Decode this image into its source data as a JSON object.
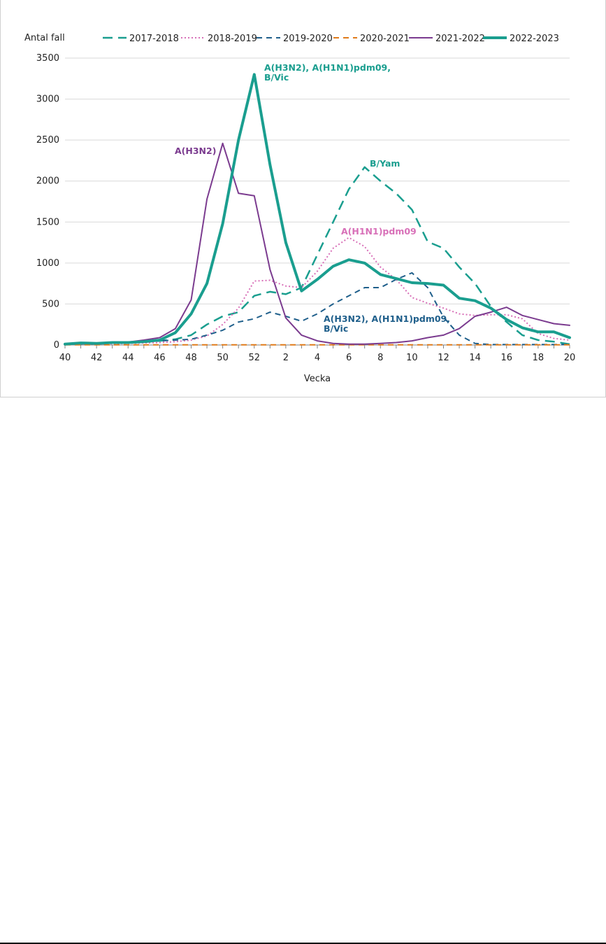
{
  "chart_data": {
    "type": "line",
    "ylabel": "Antal fall",
    "xlabel": "Vecka",
    "ylim": [
      0,
      3500
    ],
    "yticks": [
      0,
      500,
      1000,
      1500,
      2000,
      2500,
      3000,
      3500
    ],
    "x": [
      40,
      41,
      42,
      43,
      44,
      45,
      46,
      47,
      48,
      49,
      50,
      51,
      52,
      1,
      2,
      3,
      4,
      5,
      6,
      7,
      8,
      9,
      10,
      11,
      12,
      13,
      14,
      15,
      16,
      17,
      18,
      19,
      20
    ],
    "xtick_labels": [
      "40",
      "42",
      "44",
      "46",
      "48",
      "50",
      "52",
      "2",
      "4",
      "6",
      "8",
      "10",
      "12",
      "14",
      "16",
      "18",
      "20"
    ],
    "grid": "horizontal",
    "legend": "top",
    "series": [
      {
        "name": "2017-2018",
        "color": "#1a9e8f",
        "style": "dash-long",
        "width": 2.5,
        "values": [
          10,
          15,
          20,
          25,
          30,
          35,
          50,
          70,
          120,
          250,
          350,
          400,
          600,
          650,
          620,
          700,
          1100,
          1500,
          1900,
          2170,
          2000,
          1850,
          1650,
          1260,
          1180,
          950,
          750,
          470,
          280,
          120,
          60,
          40,
          10
        ]
      },
      {
        "name": "2018-2019",
        "color": "#d870b8",
        "style": "dot",
        "width": 2,
        "values": [
          5,
          10,
          10,
          15,
          20,
          25,
          30,
          40,
          60,
          110,
          250,
          450,
          780,
          790,
          720,
          700,
          900,
          1180,
          1310,
          1200,
          950,
          800,
          580,
          510,
          450,
          380,
          360,
          370,
          370,
          320,
          140,
          80,
          60
        ]
      },
      {
        "name": "2019-2020",
        "color": "#1f5f8b",
        "style": "dash",
        "width": 2,
        "values": [
          15,
          20,
          25,
          30,
          35,
          40,
          50,
          60,
          70,
          120,
          180,
          280,
          320,
          400,
          350,
          290,
          380,
          500,
          600,
          700,
          700,
          800,
          880,
          700,
          340,
          120,
          20,
          5,
          5,
          5,
          5,
          5,
          5
        ]
      },
      {
        "name": "2020-2021",
        "color": "#e07b1a",
        "style": "dash",
        "width": 2,
        "values": [
          2,
          2,
          2,
          2,
          2,
          2,
          2,
          2,
          2,
          2,
          2,
          2,
          2,
          2,
          2,
          2,
          2,
          2,
          2,
          2,
          2,
          2,
          2,
          2,
          2,
          2,
          2,
          2,
          2,
          2,
          2,
          2,
          2
        ]
      },
      {
        "name": "2021-2022",
        "color": "#7b3b8f",
        "style": "solid",
        "width": 2,
        "values": [
          10,
          20,
          25,
          30,
          35,
          60,
          90,
          200,
          550,
          1780,
          2460,
          1850,
          1820,
          920,
          330,
          120,
          50,
          20,
          10,
          10,
          20,
          30,
          50,
          90,
          120,
          200,
          350,
          400,
          460,
          360,
          310,
          260,
          240
        ]
      },
      {
        "name": "2022-2023",
        "color": "#1a9e8f",
        "style": "solid",
        "width": 4,
        "values": [
          10,
          25,
          20,
          30,
          30,
          40,
          60,
          150,
          380,
          750,
          1480,
          2500,
          3300,
          2200,
          1250,
          660,
          800,
          960,
          1040,
          1000,
          860,
          810,
          760,
          750,
          730,
          570,
          540,
          450,
          310,
          210,
          160,
          160,
          90
        ]
      }
    ],
    "annotations": [
      {
        "lines": [
          "A(H3N2), A(H1N1)pdm09,",
          "B/Vic"
        ],
        "color": "#1a9e8f"
      },
      {
        "lines": [
          "B/Yam"
        ],
        "color": "#1a9e8f"
      },
      {
        "lines": [
          "A(H3N2)"
        ],
        "color": "#7b3b8f"
      },
      {
        "lines": [
          "A(H1N1)pdm09"
        ],
        "color": "#d870b8"
      },
      {
        "lines": [
          "A(H3N2), A(H1N1)pdm09,",
          "B/Vic"
        ],
        "color": "#1f5f8b"
      }
    ]
  }
}
